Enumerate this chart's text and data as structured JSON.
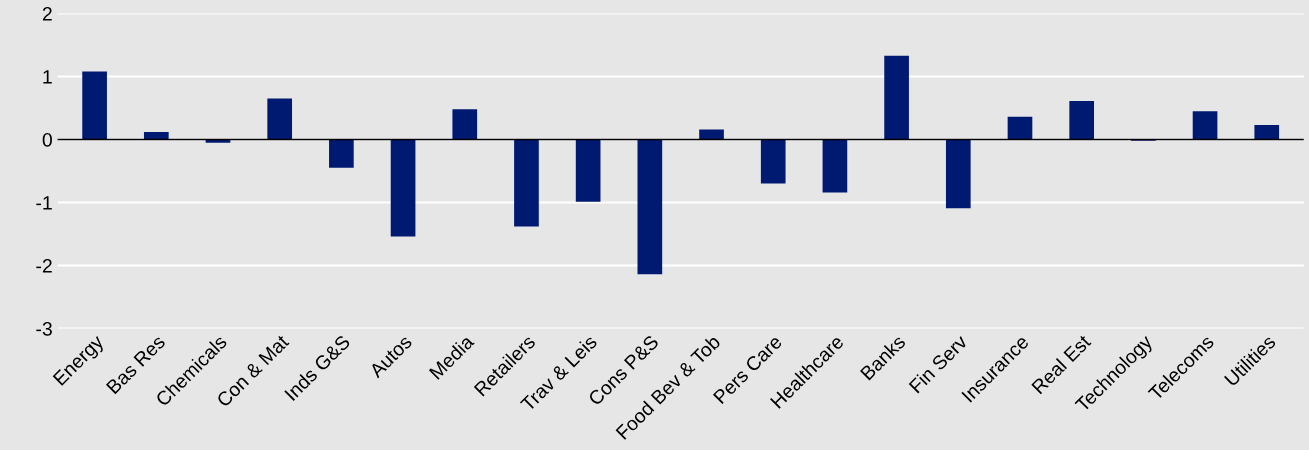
{
  "chart_data": {
    "type": "bar",
    "categories": [
      "Energy",
      "Bas Res",
      "Chemicals",
      "Con & Mat",
      "Inds G&S",
      "Autos",
      "Media",
      "Retailers",
      "Trav & Leis",
      "Cons P&S",
      "Food Bev & Tob",
      "Pers Care",
      "Healthcare",
      "Banks",
      "Fin Serv",
      "Insurance",
      "Real Est",
      "Technology",
      "Telecoms",
      "Utilities"
    ],
    "values": [
      1.08,
      0.12,
      -0.05,
      0.65,
      -0.45,
      -1.54,
      0.48,
      -1.38,
      -0.99,
      -2.14,
      0.16,
      -0.7,
      -0.84,
      1.33,
      -1.09,
      0.36,
      0.61,
      -0.02,
      0.45,
      0.23
    ],
    "color": "#001a72",
    "ylim": [
      -3,
      2
    ],
    "yticks": [
      -3,
      -2,
      -1,
      0,
      1,
      2
    ],
    "grid": "y",
    "ref_lines": [
      {
        "axis": "y",
        "value": 0,
        "color": "#000000"
      }
    ]
  }
}
